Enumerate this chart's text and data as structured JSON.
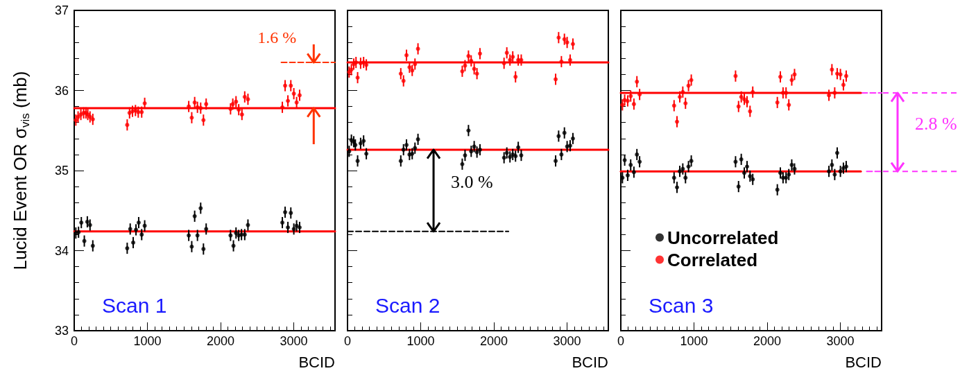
{
  "chart_data": [
    {
      "type": "scatter",
      "xlabel": "BCID",
      "ylabel": "Lucid Event OR σ$_{vis}$ (mb)",
      "xlim": [
        0,
        3564
      ],
      "xticks": [
        0,
        1000,
        2000,
        3000
      ],
      "ylim": [
        33,
        37
      ],
      "yticks": [
        33,
        34,
        35,
        36,
        37
      ],
      "legend": false,
      "annotations": [
        "Scan 1",
        "1.6 %"
      ],
      "series": [
        {
          "color": "#000000",
          "x": [
            22,
            59,
            97,
            138,
            179,
            216,
            254,
            724,
            765,
            806,
            844,
            881,
            922,
            963,
            1565,
            1606,
            1646,
            1684,
            1728,
            1766,
            1803,
            2136,
            2176,
            2211,
            2248,
            2286,
            2330,
            2374,
            2844,
            2882,
            2920,
            2960,
            3001,
            3039,
            3080
          ],
          "values": [
            34.22,
            34.23,
            34.35,
            34.12,
            34.36,
            34.32,
            34.06,
            34.03,
            34.27,
            34.1,
            34.26,
            34.35,
            34.2,
            34.31,
            34.19,
            34.05,
            34.43,
            34.19,
            34.53,
            34.02,
            34.27,
            34.19,
            34.06,
            34.22,
            34.19,
            34.2,
            34.2,
            34.32,
            34.35,
            34.48,
            34.29,
            34.47,
            34.27,
            34.31,
            34.29
          ],
          "errors": [
            0.07,
            0.07,
            0.07,
            0.07,
            0.07,
            0.07,
            0.07,
            0.07,
            0.07,
            0.07,
            0.07,
            0.07,
            0.07,
            0.07,
            0.07,
            0.07,
            0.07,
            0.07,
            0.07,
            0.07,
            0.07,
            0.07,
            0.07,
            0.07,
            0.07,
            0.07,
            0.07,
            0.07,
            0.07,
            0.07,
            0.07,
            0.07,
            0.07,
            0.07,
            0.07
          ]
        },
        {
          "color": "#ff0000",
          "x": [
            22,
            53,
            91,
            129,
            160,
            185,
            216,
            254,
            724,
            756,
            796,
            837,
            875,
            922,
            963,
            1565,
            1606,
            1646,
            1684,
            1728,
            1766,
            1803,
            2136,
            2167,
            2211,
            2248,
            2292,
            2330,
            2374,
            2844,
            2882,
            2920,
            2960,
            3001,
            3039,
            3080
          ],
          "values": [
            35.63,
            35.67,
            35.7,
            35.72,
            35.72,
            35.7,
            35.67,
            35.64,
            35.57,
            35.72,
            35.74,
            35.75,
            35.73,
            35.73,
            35.84,
            35.8,
            35.66,
            35.85,
            35.79,
            35.78,
            35.63,
            35.83,
            35.77,
            35.83,
            35.86,
            35.76,
            35.7,
            35.92,
            35.89,
            35.79,
            36.06,
            35.87,
            36.06,
            35.96,
            35.85,
            35.94
          ],
          "errors": [
            0.07,
            0.07,
            0.07,
            0.07,
            0.07,
            0.07,
            0.07,
            0.07,
            0.07,
            0.07,
            0.07,
            0.07,
            0.07,
            0.07,
            0.07,
            0.07,
            0.07,
            0.07,
            0.07,
            0.07,
            0.07,
            0.07,
            0.07,
            0.07,
            0.07,
            0.07,
            0.07,
            0.07,
            0.07,
            0.07,
            0.07,
            0.07,
            0.07,
            0.07,
            0.07,
            0.07
          ]
        },
        {
          "type": "line",
          "color": "#ff0000",
          "x": [
            0,
            3564
          ],
          "values": [
            34.24,
            34.24
          ]
        },
        {
          "type": "line",
          "color": "#ff0000",
          "x": [
            0,
            3564
          ],
          "values": [
            35.78,
            35.78
          ]
        },
        {
          "type": "line",
          "color": "#ff3300",
          "line_style": "dashed",
          "x": [
            2830,
            3564
          ],
          "values": [
            36.35,
            36.35
          ]
        }
      ]
    },
    {
      "type": "scatter",
      "xlabel": "BCID",
      "xlim": [
        0,
        3564
      ],
      "xticks": [
        0,
        1000,
        2000,
        3000
      ],
      "ylim": [
        33,
        37
      ],
      "yticks": [
        33,
        34,
        35,
        36,
        37
      ],
      "tick_labels": "x",
      "legend": false,
      "annotations": [
        "Scan 2",
        "3.0 %"
      ],
      "series": [
        {
          "color": "#000000",
          "x": [
            22,
            53,
            85,
            107,
            138,
            179,
            220,
            257,
            728,
            765,
            806,
            847,
            884,
            922,
            963,
            1568,
            1606,
            1653,
            1690,
            1731,
            1769,
            1810,
            2139,
            2177,
            2220,
            2258,
            2296,
            2333,
            2374,
            2844,
            2885,
            2923,
            2964,
            3001,
            3042,
            3080
          ],
          "values": [
            35.24,
            35.38,
            35.36,
            35.32,
            35.12,
            35.34,
            35.37,
            35.21,
            35.12,
            35.26,
            35.32,
            35.2,
            35.21,
            35.28,
            35.39,
            35.08,
            35.19,
            35.5,
            35.24,
            35.3,
            35.23,
            35.26,
            35.16,
            35.22,
            35.17,
            35.2,
            35.18,
            35.29,
            35.19,
            35.12,
            35.43,
            35.2,
            35.47,
            35.3,
            35.31,
            35.4
          ],
          "errors": [
            0.07,
            0.07,
            0.07,
            0.07,
            0.07,
            0.07,
            0.07,
            0.07,
            0.07,
            0.07,
            0.07,
            0.07,
            0.07,
            0.07,
            0.07,
            0.07,
            0.07,
            0.07,
            0.07,
            0.07,
            0.07,
            0.07,
            0.07,
            0.07,
            0.07,
            0.07,
            0.07,
            0.07,
            0.07,
            0.07,
            0.07,
            0.07,
            0.07,
            0.07,
            0.07,
            0.07
          ]
        },
        {
          "color": "#ff0000",
          "x": [
            22,
            53,
            85,
            116,
            138,
            179,
            220,
            257,
            728,
            765,
            806,
            847,
            884,
            922,
            963,
            1568,
            1606,
            1653,
            1690,
            1731,
            1769,
            1810,
            2139,
            2177,
            2220,
            2258,
            2296,
            2333,
            2374,
            2844,
            2885,
            2923,
            2964,
            3001,
            3042,
            3080
          ],
          "values": [
            36.23,
            36.26,
            36.33,
            36.35,
            36.16,
            36.34,
            36.35,
            36.32,
            36.21,
            36.12,
            36.44,
            36.29,
            36.25,
            36.33,
            36.52,
            36.24,
            36.31,
            36.43,
            36.37,
            36.27,
            36.21,
            36.46,
            36.34,
            36.47,
            36.38,
            36.42,
            36.17,
            36.38,
            36.38,
            36.14,
            36.66,
            36.36,
            36.64,
            36.6,
            36.38,
            36.58
          ],
          "errors": [
            0.07,
            0.07,
            0.07,
            0.07,
            0.07,
            0.07,
            0.07,
            0.07,
            0.07,
            0.07,
            0.07,
            0.07,
            0.07,
            0.07,
            0.07,
            0.07,
            0.07,
            0.07,
            0.07,
            0.07,
            0.07,
            0.07,
            0.07,
            0.07,
            0.07,
            0.07,
            0.07,
            0.07,
            0.07,
            0.07,
            0.07,
            0.07,
            0.07,
            0.07,
            0.07,
            0.07
          ]
        },
        {
          "type": "line",
          "color": "#ff0000",
          "x": [
            0,
            3564
          ],
          "values": [
            35.26,
            35.26
          ]
        },
        {
          "type": "line",
          "color": "#ff0000",
          "x": [
            0,
            3564
          ],
          "values": [
            36.35,
            36.35
          ]
        },
        {
          "type": "line",
          "color": "#000000",
          "line_style": "dashed",
          "x": [
            0,
            2200
          ],
          "values": [
            34.24,
            34.24
          ]
        }
      ]
    },
    {
      "type": "scatter",
      "xlabel": "BCID",
      "xlim": [
        0,
        3564
      ],
      "xticks": [
        0,
        1000,
        2000,
        3000
      ],
      "ylim": [
        33,
        37
      ],
      "yticks": [
        33,
        34,
        35,
        36,
        37
      ],
      "tick_labels": "x",
      "legend": "bottom left",
      "annotations": [
        "Scan 3",
        "2.8 %"
      ],
      "series": [
        {
          "name": "Uncorrelated",
          "color": "#000000",
          "x": [
            22,
            53,
            94,
            135,
            179,
            220,
            257,
            728,
            768,
            806,
            847,
            884,
            925,
            963,
            1568,
            1609,
            1646,
            1687,
            1725,
            1766,
            1803,
            2139,
            2180,
            2217,
            2258,
            2296,
            2336,
            2374,
            2844,
            2885,
            2923,
            2957,
            3001,
            3042,
            3080
          ],
          "values": [
            34.91,
            35.13,
            34.94,
            35.07,
            34.98,
            35.2,
            35.11,
            34.91,
            34.79,
            34.99,
            35.02,
            34.91,
            35.05,
            35.12,
            35.11,
            34.8,
            35.14,
            34.97,
            35.05,
            34.93,
            34.89,
            34.76,
            34.97,
            34.91,
            34.91,
            34.95,
            35.07,
            35.02,
            34.99,
            35.07,
            34.95,
            35.22,
            34.99,
            35.03,
            35.05
          ],
          "errors": [
            0.07,
            0.07,
            0.07,
            0.07,
            0.07,
            0.07,
            0.07,
            0.07,
            0.07,
            0.07,
            0.07,
            0.07,
            0.07,
            0.07,
            0.07,
            0.07,
            0.07,
            0.07,
            0.07,
            0.07,
            0.07,
            0.07,
            0.07,
            0.07,
            0.07,
            0.07,
            0.07,
            0.07,
            0.07,
            0.07,
            0.07,
            0.07,
            0.07,
            0.07,
            0.07
          ]
        },
        {
          "name": "Correlated",
          "color": "#ff0000",
          "x": [
            22,
            53,
            94,
            135,
            179,
            220,
            257,
            728,
            768,
            806,
            847,
            884,
            925,
            963,
            1568,
            1609,
            1646,
            1687,
            1725,
            1766,
            1803,
            2139,
            2180,
            2217,
            2258,
            2296,
            2336,
            2374,
            2844,
            2885,
            2923,
            2957,
            3001,
            3042,
            3080
          ],
          "values": [
            35.82,
            35.88,
            35.87,
            35.93,
            35.83,
            36.11,
            35.95,
            35.81,
            35.61,
            35.92,
            35.98,
            35.84,
            36.06,
            36.13,
            36.18,
            35.8,
            35.92,
            35.89,
            35.86,
            35.74,
            35.98,
            35.85,
            36.17,
            35.97,
            35.97,
            35.82,
            36.13,
            36.2,
            35.94,
            36.26,
            35.97,
            36.21,
            36.2,
            36.07,
            36.18
          ],
          "errors": [
            0.07,
            0.07,
            0.07,
            0.07,
            0.07,
            0.07,
            0.07,
            0.07,
            0.07,
            0.07,
            0.07,
            0.07,
            0.07,
            0.07,
            0.07,
            0.07,
            0.07,
            0.07,
            0.07,
            0.07,
            0.07,
            0.07,
            0.07,
            0.07,
            0.07,
            0.07,
            0.07,
            0.07,
            0.07,
            0.07,
            0.07,
            0.07,
            0.07,
            0.07,
            0.07
          ]
        },
        {
          "type": "line",
          "color": "#ff0000",
          "x": [
            0,
            3280
          ],
          "values": [
            34.99,
            34.99
          ]
        },
        {
          "type": "line",
          "color": "#ff0000",
          "x": [
            0,
            3280
          ],
          "values": [
            35.97,
            35.97
          ]
        },
        {
          "type": "line",
          "color": "#ff33ff",
          "line_style": "dashed",
          "x": [
            3293,
            3564
          ],
          "values": [
            35.97,
            35.97
          ]
        },
        {
          "type": "line",
          "color": "#ff33ff",
          "line_style": "dashed",
          "x": [
            3360,
            3564
          ],
          "values": [
            34.99,
            34.99
          ]
        }
      ]
    }
  ]
}
